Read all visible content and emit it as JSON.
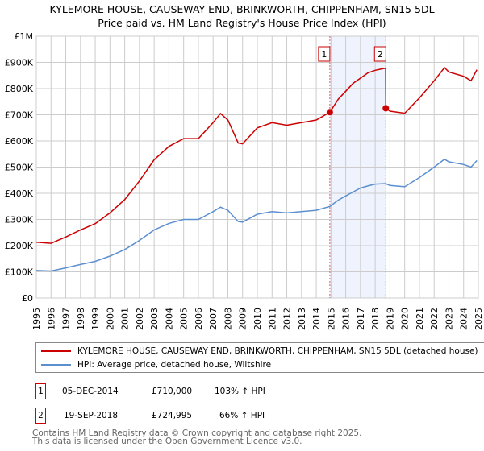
{
  "chart_data": {
    "type": "line",
    "title": "KYLEMORE HOUSE, CAUSEWAY END, BRINKWORTH, CHIPPENHAM, SN15 5DL",
    "subtitle": "Price paid vs. HM Land Registry's House Price Index (HPI)",
    "ylim": [
      0,
      1000000
    ],
    "xlim": [
      1995,
      2025
    ],
    "y_ticks": [
      {
        "v": 0,
        "label": "£0"
      },
      {
        "v": 100000,
        "label": "£100K"
      },
      {
        "v": 200000,
        "label": "£200K"
      },
      {
        "v": 300000,
        "label": "£300K"
      },
      {
        "v": 400000,
        "label": "£400K"
      },
      {
        "v": 500000,
        "label": "£500K"
      },
      {
        "v": 600000,
        "label": "£600K"
      },
      {
        "v": 700000,
        "label": "£700K"
      },
      {
        "v": 800000,
        "label": "£800K"
      },
      {
        "v": 900000,
        "label": "£900K"
      },
      {
        "v": 1000000,
        "label": "£1M"
      }
    ],
    "x_ticks": [
      "1995",
      "1996",
      "1997",
      "1998",
      "1999",
      "2000",
      "2001",
      "2002",
      "2003",
      "2004",
      "2005",
      "2006",
      "2007",
      "2008",
      "2009",
      "2010",
      "2011",
      "2012",
      "2013",
      "2014",
      "2015",
      "2016",
      "2017",
      "2018",
      "2019",
      "2020",
      "2021",
      "2022",
      "2023",
      "2024",
      "2025"
    ],
    "grid": true,
    "series": [
      {
        "name": "KYLEMORE HOUSE, CAUSEWAY END, BRINKWORTH, CHIPPENHAM, SN15 5DL (detached house)",
        "color": "#cc0000",
        "x": [
          1995,
          1996,
          1997,
          1998,
          1999,
          2000,
          2001,
          2002,
          2003,
          2004,
          2005,
          2006,
          2007,
          2007.5,
          2008,
          2008.7,
          2009,
          2010,
          2011,
          2012,
          2013,
          2014,
          2014.92,
          2015.5,
          2016,
          2016.5,
          2017,
          2017.5,
          2018,
          2018.71,
          2018.72,
          2019,
          2020,
          2021,
          2022,
          2022.7,
          2023,
          2024,
          2024.5,
          2024.9
        ],
        "y": [
          213000,
          209000,
          233000,
          260000,
          284000,
          325000,
          376000,
          447000,
          528000,
          579000,
          609000,
          609000,
          670000,
          705000,
          680000,
          592000,
          589000,
          650000,
          670000,
          660000,
          670000,
          680000,
          710000,
          760000,
          790000,
          820000,
          840000,
          860000,
          870000,
          878000,
          724995,
          714000,
          706000,
          764000,
          830000,
          880000,
          863000,
          847000,
          830000,
          872000
        ]
      },
      {
        "name": "HPI: Average price, detached house, Wiltshire",
        "color": "#5b8fd0",
        "x": [
          1995,
          1996,
          1997,
          1998,
          1999,
          2000,
          2001,
          2002,
          2003,
          2004,
          2005,
          2006,
          2007,
          2007.5,
          2008,
          2008.7,
          2009,
          2010,
          2011,
          2012,
          2013,
          2014,
          2014.92,
          2015.5,
          2016,
          2016.5,
          2017,
          2017.5,
          2018,
          2018.71,
          2019,
          2020,
          2021,
          2022,
          2022.7,
          2023,
          2024,
          2024.5,
          2024.9
        ],
        "y": [
          105000,
          103000,
          115000,
          128000,
          140000,
          160000,
          185000,
          220000,
          260000,
          285000,
          300000,
          300000,
          330000,
          347000,
          335000,
          292000,
          290000,
          320000,
          330000,
          325000,
          330000,
          335000,
          350000,
          374000,
          390000,
          405000,
          420000,
          428000,
          435000,
          437000,
          430000,
          425000,
          460000,
          500000,
          530000,
          520000,
          510000,
          500000,
          525000
        ]
      }
    ],
    "sales": [
      {
        "label": "1",
        "x": 2014.92,
        "y": 710000
      },
      {
        "label": "2",
        "x": 2018.72,
        "y": 724995
      }
    ]
  },
  "legend": {
    "red": "KYLEMORE HOUSE, CAUSEWAY END, BRINKWORTH, CHIPPENHAM, SN15 5DL (detached house)",
    "blue": "HPI: Average price, detached house, Wiltshire"
  },
  "table": [
    {
      "num": "1",
      "date": "05-DEC-2014",
      "price": "£710,000",
      "hpi": "103% ↑ HPI"
    },
    {
      "num": "2",
      "date": "19-SEP-2018",
      "price": "£724,995",
      "hpi": "66% ↑ HPI"
    }
  ],
  "footer": {
    "line1": "Contains HM Land Registry data © Crown copyright and database right 2025.",
    "line2": "This data is licensed under the Open Government Licence v3.0."
  }
}
